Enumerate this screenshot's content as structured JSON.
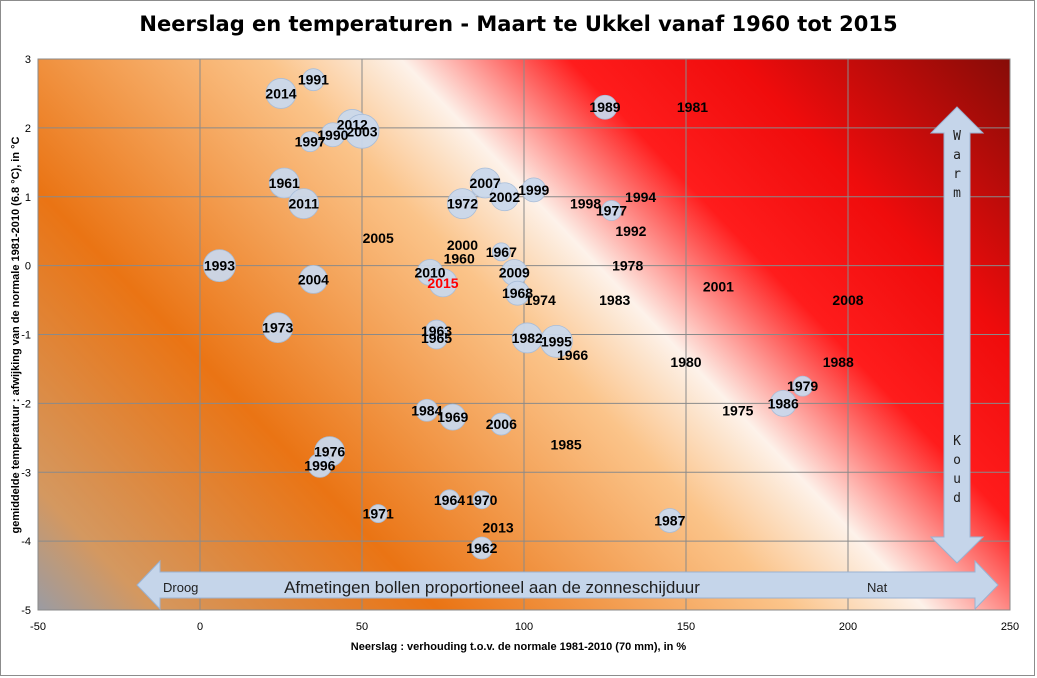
{
  "chart_data": {
    "type": "scatter",
    "title": "Neerslag en temperaturen - Maart te Ukkel vanaf 1960 tot 2015",
    "xlabel": "Neerslag : verhouding t.o.v. de normale 1981-2010 (70 mm), in %",
    "ylabel": "gemiddelde temperatuur : afwijking van de normale 1981-2010 (6.8 °C), in °C",
    "xlim": [
      -50,
      250
    ],
    "ylim": [
      -5,
      3
    ],
    "x_ticks": [
      "-50",
      "0",
      "50",
      "100",
      "150",
      "200",
      "250"
    ],
    "y_ticks": [
      "-5",
      "-4",
      "-3",
      "-2",
      "-1",
      "0",
      "1",
      "2",
      "3"
    ],
    "grid": "horizontal and vertical",
    "bubble_size": "Afmetingen bollen proportioneel aan de zonneschijduur",
    "highlight_color": "#ff0000",
    "bubble_color": "#c9d8ec",
    "points": [
      {
        "label": "1991",
        "x": 35,
        "y": 2.7,
        "r": 11
      },
      {
        "label": "2014",
        "x": 25,
        "y": 2.5,
        "r": 15
      },
      {
        "label": "1989",
        "x": 125,
        "y": 2.3,
        "r": 12
      },
      {
        "label": "1981",
        "x": 152,
        "y": 2.3,
        "r": 0
      },
      {
        "label": "2012",
        "x": 47,
        "y": 2.05,
        "r": 15
      },
      {
        "label": "2003",
        "x": 50,
        "y": 1.95,
        "r": 17
      },
      {
        "label": "1990",
        "x": 41,
        "y": 1.9,
        "r": 12
      },
      {
        "label": "1997",
        "x": 34,
        "y": 1.8,
        "r": 10
      },
      {
        "label": "1961",
        "x": 26,
        "y": 1.2,
        "r": 15
      },
      {
        "label": "2007",
        "x": 88,
        "y": 1.2,
        "r": 15
      },
      {
        "label": "1999",
        "x": 103,
        "y": 1.1,
        "r": 12
      },
      {
        "label": "2002",
        "x": 94,
        "y": 1.0,
        "r": 14
      },
      {
        "label": "1994",
        "x": 136,
        "y": 1.0,
        "r": 0
      },
      {
        "label": "2011",
        "x": 32,
        "y": 0.9,
        "r": 15
      },
      {
        "label": "1972",
        "x": 81,
        "y": 0.9,
        "r": 15
      },
      {
        "label": "1998",
        "x": 119,
        "y": 0.9,
        "r": 0
      },
      {
        "label": "1977",
        "x": 127,
        "y": 0.8,
        "r": 10
      },
      {
        "label": "1992",
        "x": 133,
        "y": 0.5,
        "r": 0
      },
      {
        "label": "2005",
        "x": 55,
        "y": 0.4,
        "r": 0
      },
      {
        "label": "2000",
        "x": 81,
        "y": 0.3,
        "r": 0
      },
      {
        "label": "1967",
        "x": 93,
        "y": 0.2,
        "r": 9
      },
      {
        "label": "1960",
        "x": 80,
        "y": 0.1,
        "r": 0
      },
      {
        "label": "1978",
        "x": 132,
        "y": 0.0,
        "r": 0
      },
      {
        "label": "1993",
        "x": 6,
        "y": 0.0,
        "r": 16
      },
      {
        "label": "2010",
        "x": 71,
        "y": -0.1,
        "r": 13
      },
      {
        "label": "2009",
        "x": 97,
        "y": -0.1,
        "r": 13
      },
      {
        "label": "2015",
        "x": 75,
        "y": -0.25,
        "r": 14,
        "highlight": true
      },
      {
        "label": "2004",
        "x": 35,
        "y": -0.2,
        "r": 14
      },
      {
        "label": "2001",
        "x": 160,
        "y": -0.3,
        "r": 0
      },
      {
        "label": "1968",
        "x": 98,
        "y": -0.4,
        "r": 12
      },
      {
        "label": "1974",
        "x": 105,
        "y": -0.5,
        "r": 0
      },
      {
        "label": "1983",
        "x": 128,
        "y": -0.5,
        "r": 0
      },
      {
        "label": "2008",
        "x": 200,
        "y": -0.5,
        "r": 0
      },
      {
        "label": "1963",
        "x": 73,
        "y": -0.95,
        "r": 11
      },
      {
        "label": "1973",
        "x": 24,
        "y": -0.9,
        "r": 15
      },
      {
        "label": "1965",
        "x": 73,
        "y": -1.05,
        "r": 11
      },
      {
        "label": "1982",
        "x": 101,
        "y": -1.05,
        "r": 15
      },
      {
        "label": "1995",
        "x": 110,
        "y": -1.1,
        "r": 16
      },
      {
        "label": "1966",
        "x": 115,
        "y": -1.3,
        "r": 0
      },
      {
        "label": "1980",
        "x": 150,
        "y": -1.4,
        "r": 0
      },
      {
        "label": "1988",
        "x": 197,
        "y": -1.4,
        "r": 0
      },
      {
        "label": "1979",
        "x": 186,
        "y": -1.75,
        "r": 10
      },
      {
        "label": "1986",
        "x": 180,
        "y": -2.0,
        "r": 13
      },
      {
        "label": "1975",
        "x": 166,
        "y": -2.1,
        "r": 0
      },
      {
        "label": "1984",
        "x": 70,
        "y": -2.1,
        "r": 11
      },
      {
        "label": "1969",
        "x": 78,
        "y": -2.2,
        "r": 13
      },
      {
        "label": "2006",
        "x": 93,
        "y": -2.3,
        "r": 11
      },
      {
        "label": "1985",
        "x": 113,
        "y": -2.6,
        "r": 0
      },
      {
        "label": "1976",
        "x": 40,
        "y": -2.7,
        "r": 15
      },
      {
        "label": "1996",
        "x": 37,
        "y": -2.9,
        "r": 12
      },
      {
        "label": "1964",
        "x": 77,
        "y": -3.4,
        "r": 10
      },
      {
        "label": "1970",
        "x": 87,
        "y": -3.4,
        "r": 9
      },
      {
        "label": "1971",
        "x": 55,
        "y": -3.6,
        "r": 9
      },
      {
        "label": "1987",
        "x": 145,
        "y": -3.7,
        "r": 12
      },
      {
        "label": "2013",
        "x": 92,
        "y": -3.8,
        "r": 0
      },
      {
        "label": "1962",
        "x": 87,
        "y": -4.1,
        "r": 11
      }
    ],
    "annotations": {
      "warm": "Warm",
      "koud": "Koud",
      "droog": "Droog",
      "nat": "Nat",
      "size_note": "Afmetingen bollen proportioneel aan de zonneschijduur"
    }
  }
}
